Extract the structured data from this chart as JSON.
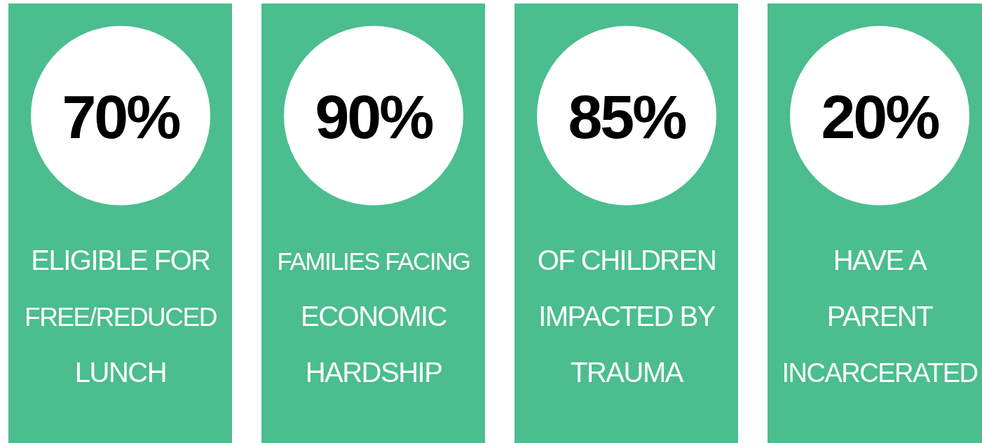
{
  "chart_data": {
    "type": "other",
    "categories": [
      "ELIGIBLE FOR\nFREE/REDUCED\nLUNCH",
      "FAMILIES FACING\nECONOMIC\nHARDSHIP",
      "OF CHILDREN\nIMPACTED BY\nTRAUMA",
      "HAVE A\nPARENT\nINCARCERATED"
    ],
    "values": [
      70,
      90,
      85,
      20
    ],
    "value_labels": [
      "70%",
      "90%",
      "85%",
      "20%"
    ]
  }
}
